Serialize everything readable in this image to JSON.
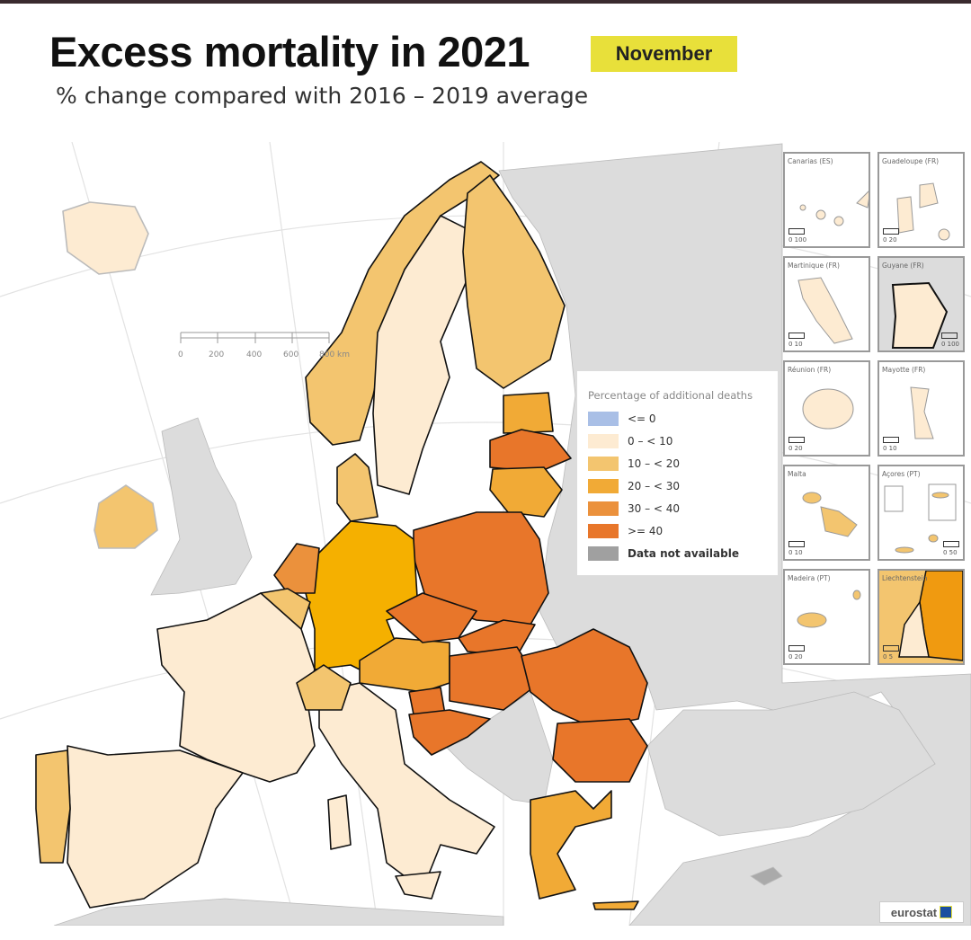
{
  "header": {
    "title": "Excess mortality in 2021",
    "month_badge": "November",
    "subtitle": "% change compared with 2016 – 2019 average"
  },
  "scale_bar": {
    "ticks": [
      "0",
      "200",
      "400",
      "600",
      "800 km"
    ]
  },
  "legend": {
    "title": "Percentage of additional deaths",
    "items": [
      {
        "label": "<= 0",
        "color": "#a9bfe6"
      },
      {
        "label": "0 – < 10",
        "color": "#fdebd2"
      },
      {
        "label": "10 – < 20",
        "color": "#f3c56f"
      },
      {
        "label": "20 – < 30",
        "color": "#f1aa36"
      },
      {
        "label": "30 – < 40",
        "color": "#eb913c"
      },
      {
        "label": ">= 40",
        "color": "#e8762a"
      },
      {
        "label": "Data not available",
        "color": "#a0a0a0"
      }
    ]
  },
  "insets": [
    {
      "label": "Canarias (ES)",
      "scale": "0  100"
    },
    {
      "label": "Guadeloupe (FR)",
      "scale": "0  20"
    },
    {
      "label": "Martinique (FR)",
      "scale": "0  10"
    },
    {
      "label": "Guyane (FR)",
      "scale": "0  100"
    },
    {
      "label": "Réunion (FR)",
      "scale": "0  20"
    },
    {
      "label": "Mayotte (FR)",
      "scale": "0  10"
    },
    {
      "label": "Malta",
      "scale": "0  10"
    },
    {
      "label": "Açores (PT)",
      "scale": "0  50"
    },
    {
      "label": "Madeira (PT)",
      "scale": "0  20"
    },
    {
      "label": "Liechtenstein",
      "scale": "0  5"
    }
  ],
  "logo": "eurostat"
}
